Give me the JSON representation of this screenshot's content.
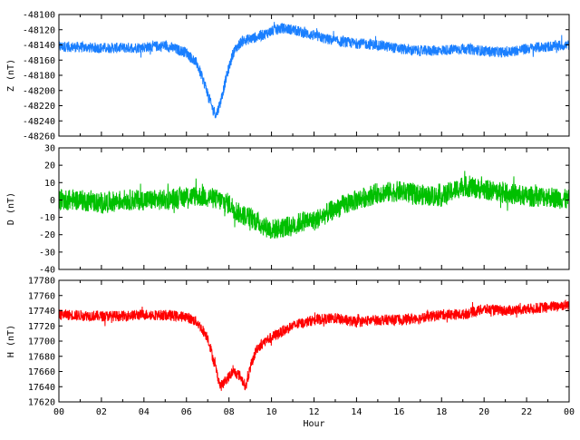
{
  "chart_data": [
    {
      "type": "line",
      "ylabel": "Z (nT)",
      "color": "#1a7fff",
      "ylim": [
        -48260,
        -48100
      ],
      "yticks": [
        -48260,
        -48240,
        -48220,
        -48200,
        -48180,
        -48160,
        -48140,
        -48120,
        -48100
      ],
      "noise": 7,
      "series": [
        {
          "x": [
            0,
            1,
            2,
            3,
            4,
            5,
            6,
            6.5,
            6.9,
            7.2,
            7.4,
            7.6,
            7.9,
            8.2,
            8.6,
            9.0,
            9.5,
            10.0,
            10.5,
            11.0,
            12,
            13,
            14,
            15,
            16,
            17,
            18,
            19,
            20,
            21,
            22,
            23,
            24
          ],
          "values": [
            -48142,
            -48143,
            -48144,
            -48144,
            -48143,
            -48141,
            -48150,
            -48165,
            -48195,
            -48222,
            -48232,
            -48215,
            -48180,
            -48150,
            -48135,
            -48132,
            -48128,
            -48122,
            -48118,
            -48120,
            -48128,
            -48135,
            -48138,
            -48140,
            -48145,
            -48148,
            -48147,
            -48145,
            -48148,
            -48150,
            -48145,
            -48142,
            -48140
          ]
        }
      ]
    },
    {
      "type": "line",
      "ylabel": "D (nT)",
      "color": "#00c000",
      "ylim": [
        -40,
        30
      ],
      "yticks": [
        -40,
        -30,
        -20,
        -10,
        0,
        10,
        20,
        30
      ],
      "noise": 6,
      "series": [
        {
          "x": [
            0,
            1,
            2,
            3,
            4,
            5,
            6,
            7,
            7.5,
            8,
            8.5,
            9,
            9.5,
            10,
            10.5,
            11,
            11.5,
            12,
            13,
            14,
            15,
            16,
            17,
            18,
            19,
            20,
            21,
            22,
            23,
            24
          ],
          "values": [
            0,
            0,
            -2,
            0,
            0,
            0,
            2,
            2,
            0,
            -2,
            -8,
            -10,
            -14,
            -17,
            -16,
            -15,
            -12,
            -12,
            -5,
            0,
            4,
            5,
            3,
            2,
            8,
            6,
            4,
            2,
            2,
            0
          ]
        }
      ]
    },
    {
      "type": "line",
      "ylabel": "H (nT)",
      "color": "#ff0000",
      "xlabel": "Hour",
      "xlim": [
        0,
        24
      ],
      "ylim": [
        17620,
        17780
      ],
      "yticks": [
        17620,
        17640,
        17660,
        17680,
        17700,
        17720,
        17740,
        17760,
        17780
      ],
      "xticks": [
        "00",
        "02",
        "04",
        "06",
        "08",
        "10",
        "12",
        "14",
        "16",
        "18",
        "20",
        "22",
        "00"
      ],
      "noise": 7,
      "series": [
        {
          "x": [
            0,
            1,
            2,
            3,
            4,
            5,
            6,
            6.5,
            7.0,
            7.3,
            7.6,
            7.9,
            8.2,
            8.5,
            8.8,
            9.0,
            9.3,
            9.7,
            10,
            11,
            12,
            13,
            14,
            15,
            16,
            17,
            18,
            19,
            20,
            21,
            22,
            23,
            24
          ],
          "values": [
            17735,
            17734,
            17733,
            17733,
            17735,
            17734,
            17732,
            17725,
            17705,
            17672,
            17640,
            17650,
            17660,
            17655,
            17640,
            17665,
            17690,
            17700,
            17705,
            17720,
            17728,
            17730,
            17725,
            17728,
            17728,
            17730,
            17735,
            17735,
            17742,
            17740,
            17742,
            17745,
            17748
          ]
        }
      ]
    }
  ]
}
